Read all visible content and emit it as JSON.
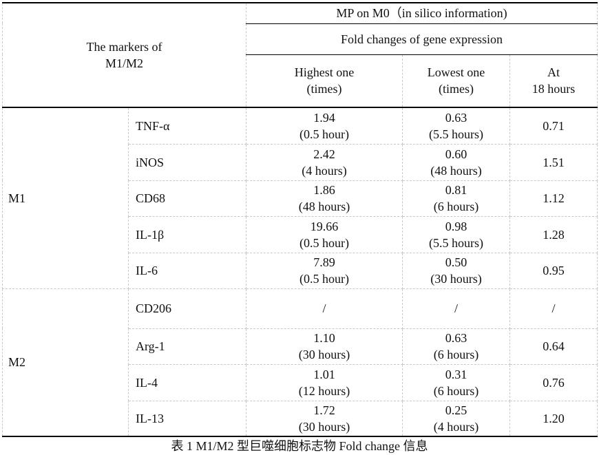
{
  "header": {
    "markers_label": "The markers of",
    "markers_label2": "M1/M2",
    "group_title": "MP on M0（in silico information)",
    "subgroup_title": "Fold changes of gene expression",
    "col_highest": "Highest one",
    "col_highest_unit": "(times)",
    "col_lowest": "Lowest one",
    "col_lowest_unit": "(times)",
    "col_at": "At",
    "col_at2": "18 hours"
  },
  "groups": [
    {
      "name": "M1",
      "rows": [
        {
          "marker": "TNF-α",
          "high": "1.94",
          "high_t": "(0.5 hour)",
          "low": "0.63",
          "low_t": "(5.5 hours)",
          "at18": "0.71"
        },
        {
          "marker": "iNOS",
          "high": "2.42",
          "high_t": "(4 hours)",
          "low": "0.60",
          "low_t": "(48 hours)",
          "at18": "1.51"
        },
        {
          "marker": "CD68",
          "high": "1.86",
          "high_t": "(48 hours)",
          "low": "0.81",
          "low_t": "(6 hours)",
          "at18": "1.12"
        },
        {
          "marker": "IL-1β",
          "high": "19.66",
          "high_t": "(0.5 hour)",
          "low": "0.98",
          "low_t": "(5.5 hours)",
          "at18": "1.28"
        },
        {
          "marker": "IL-6",
          "high": "7.89",
          "high_t": "(0.5 hour)",
          "low": "0.50",
          "low_t": "(30 hours)",
          "at18": "0.95"
        }
      ]
    },
    {
      "name": "M2",
      "rows": [
        {
          "marker": "CD206",
          "high": "/",
          "high_t": "",
          "low": "/",
          "low_t": "",
          "at18": "/"
        },
        {
          "marker": "Arg-1",
          "high": "1.10",
          "high_t": "(30 hours)",
          "low": "0.63",
          "low_t": "(6 hours)",
          "at18": "0.64"
        },
        {
          "marker": "IL-4",
          "high": "1.01",
          "high_t": "(12 hours)",
          "low": "0.31",
          "low_t": "(6 hours)",
          "at18": "0.76"
        },
        {
          "marker": "IL-13",
          "high": "1.72",
          "high_t": "(30 hours)",
          "low": "0.25",
          "low_t": "(4 hours)",
          "at18": "1.20"
        }
      ]
    }
  ],
  "caption": "表 1 M1/M2 型巨噬细胞标志物 Fold change 信息"
}
